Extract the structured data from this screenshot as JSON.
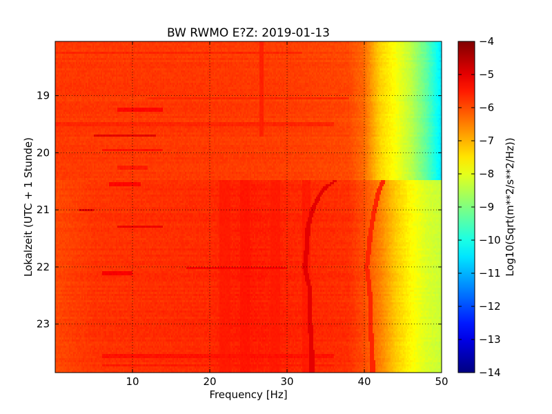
{
  "chart_data": {
    "type": "heatmap",
    "title": "BW RWMO E?Z: 2019-01-13",
    "xlabel": "Frequency [Hz]",
    "ylabel": "Lokalzeit (UTC + 1 Stunde)",
    "xlim": [
      0,
      50
    ],
    "ylim": [
      23.85,
      18.05
    ],
    "x_ticks": [
      10,
      20,
      30,
      40,
      50
    ],
    "y_ticks": [
      19,
      20,
      21,
      22,
      23
    ],
    "grid": true,
    "colormap": "jet",
    "colorbar": {
      "label": "Log10(Sqrt(m**2/s**2/Hz))",
      "vmin": -14,
      "vmax": -4,
      "ticks": [
        -14,
        -13,
        -12,
        -11,
        -10,
        -9,
        -8,
        -7,
        -6,
        -5,
        -4
      ]
    },
    "regime_change_time": 20.47,
    "background_before": {
      "freq": [
        0,
        20,
        30,
        38,
        40,
        42,
        44,
        46,
        48,
        50
      ],
      "value": [
        -5.8,
        -5.8,
        -5.85,
        -5.95,
        -6.3,
        -7.3,
        -7.8,
        -8.4,
        -9.3,
        -10.5
      ]
    },
    "background_after": {
      "freq": [
        0,
        5,
        20,
        25,
        30,
        38,
        40,
        42,
        44,
        46,
        48,
        50
      ],
      "value": [
        -5.95,
        -5.75,
        -5.65,
        -5.5,
        -5.6,
        -5.7,
        -6.0,
        -6.5,
        -7.2,
        -7.7,
        -8.1,
        -8.3
      ]
    },
    "horizontal_bands": [
      {
        "time": 18.25,
        "f_start": 0,
        "f_end": 32,
        "value": -5.6
      },
      {
        "time": 19.05,
        "f_start": 12,
        "f_end": 38,
        "value": -5.6
      },
      {
        "time": 19.25,
        "f_start": 8,
        "f_end": 14,
        "value": -5.3
      },
      {
        "time": 19.5,
        "f_start": 0,
        "f_end": 36,
        "value": -5.6
      },
      {
        "time": 19.7,
        "f_start": 5,
        "f_end": 13,
        "value": -5.0
      },
      {
        "time": 19.95,
        "f_start": 6,
        "f_end": 14,
        "value": -5.4
      },
      {
        "time": 20.25,
        "f_start": 8,
        "f_end": 12,
        "value": -5.5
      },
      {
        "time": 20.55,
        "f_start": 7,
        "f_end": 11,
        "value": -5.3
      },
      {
        "time": 21.0,
        "f_start": 3,
        "f_end": 5,
        "value": -5.0
      },
      {
        "time": 21.3,
        "f_start": 8,
        "f_end": 14,
        "value": -5.1
      },
      {
        "time": 22.02,
        "f_start": 17,
        "f_end": 30,
        "value": -5.2
      },
      {
        "time": 22.1,
        "f_start": 6,
        "f_end": 10,
        "value": -5.2
      },
      {
        "time": 23.55,
        "f_start": 6,
        "f_end": 36,
        "value": -5.4
      },
      {
        "time": 23.72,
        "f_start": 6,
        "f_end": 36,
        "value": -5.5
      }
    ],
    "vertical_bands": [
      {
        "freq": 22,
        "width": 1.5,
        "value": -5.5,
        "t_start": 20.47,
        "t_end": 23.85
      },
      {
        "freq": 24.5,
        "width": 1.2,
        "value": -5.45,
        "t_start": 20.47,
        "t_end": 23.85
      },
      {
        "freq": 28.5,
        "width": 1.2,
        "value": -5.5,
        "t_start": 20.47,
        "t_end": 23.85
      },
      {
        "freq": 32.5,
        "width": 1.0,
        "value": -5.5,
        "t_start": 20.47,
        "t_end": 23.85
      },
      {
        "freq": 26.7,
        "width": 0.4,
        "value": -5.55,
        "t_start": 18.05,
        "t_end": 19.7
      }
    ],
    "tracks": [
      {
        "name": "",
        "value": -5.0,
        "points": [
          [
            20.47,
            36.5
          ],
          [
            20.6,
            35.0
          ],
          [
            20.8,
            34.0
          ],
          [
            21.0,
            33.3
          ],
          [
            21.3,
            32.7
          ],
          [
            21.6,
            32.6
          ],
          [
            21.9,
            32.4
          ],
          [
            22.0,
            32.3
          ],
          [
            22.2,
            32.6
          ],
          [
            22.4,
            33.0
          ],
          [
            22.6,
            33.0
          ],
          [
            23.0,
            33.0
          ],
          [
            23.5,
            33.2
          ],
          [
            23.85,
            33.2
          ]
        ]
      },
      {
        "name": "",
        "value": -5.6,
        "points": [
          [
            20.47,
            42.5
          ],
          [
            20.7,
            41.8
          ],
          [
            21.0,
            41.3
          ],
          [
            21.4,
            40.8
          ],
          [
            21.8,
            40.5
          ],
          [
            22.0,
            40.3
          ],
          [
            22.3,
            40.6
          ],
          [
            22.6,
            40.8
          ],
          [
            23.0,
            40.8
          ],
          [
            23.5,
            41.0
          ],
          [
            23.85,
            41.1
          ]
        ]
      }
    ]
  }
}
